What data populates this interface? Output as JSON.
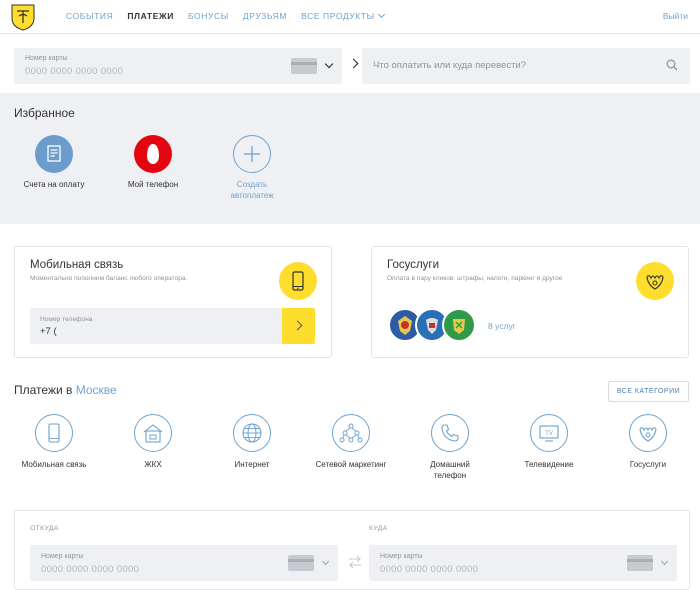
{
  "header": {
    "nav": [
      "СОБЫТИЯ",
      "ПЛАТЕЖИ",
      "БОНУСЫ",
      "ДРУЗЬЯМ",
      "ВСЕ ПРОДУКТЫ"
    ],
    "active_nav": "ПЛАТЕЖИ",
    "logout": "Выйти"
  },
  "search_row": {
    "card_label": "Номер карты",
    "card_placeholder": "0000 0000 0000 0000",
    "search_placeholder": "Что оплатить или куда перевести?"
  },
  "favorites": {
    "title": "Избранное",
    "items": [
      {
        "label": "Счета на оплату",
        "icon": "invoice-icon"
      },
      {
        "label": "Мой телефон",
        "icon": "mts-icon"
      },
      {
        "label_line1": "Создать",
        "label_line2": "автоплатеж",
        "icon": "plus-icon"
      }
    ]
  },
  "mobile_card": {
    "title": "Мобильная связь",
    "subtitle": "Моментально пополним баланс любого оператора.",
    "phone_label": "Номер телефона",
    "phone_value": "+7 ("
  },
  "gos_card": {
    "title": "Госуслуги",
    "subtitle": "Оплата в пару кликов: штрафы, налоги, паркинг и другое",
    "services_link": "8 услуг"
  },
  "payments": {
    "title": "Платежи в",
    "city": "Москве",
    "all_categories": "ВСЕ КАТЕГОРИИ",
    "categories": [
      {
        "label": "Мобильная связь",
        "icon": "mobile-icon"
      },
      {
        "label": "ЖКХ",
        "icon": "house-icon"
      },
      {
        "label": "Интернет",
        "icon": "globe-icon"
      },
      {
        "label": "Сетевой маркетинг",
        "icon": "network-icon"
      },
      {
        "label_line1": "Домашний",
        "label_line2": "телефон",
        "icon": "handset-icon"
      },
      {
        "label": "Телевидение",
        "icon": "tv-icon"
      },
      {
        "label": "Госуслуги",
        "icon": "gos-icon"
      }
    ]
  },
  "transfer": {
    "from_label": "ОТКУДА",
    "to_label": "КУДА",
    "card_label": "Номер карты",
    "card_placeholder": "0000 0000 0000 0000"
  },
  "colors": {
    "accent": "#6fa3cf",
    "yellow": "#ffdd2d",
    "bg_gray": "#eef0f3"
  }
}
